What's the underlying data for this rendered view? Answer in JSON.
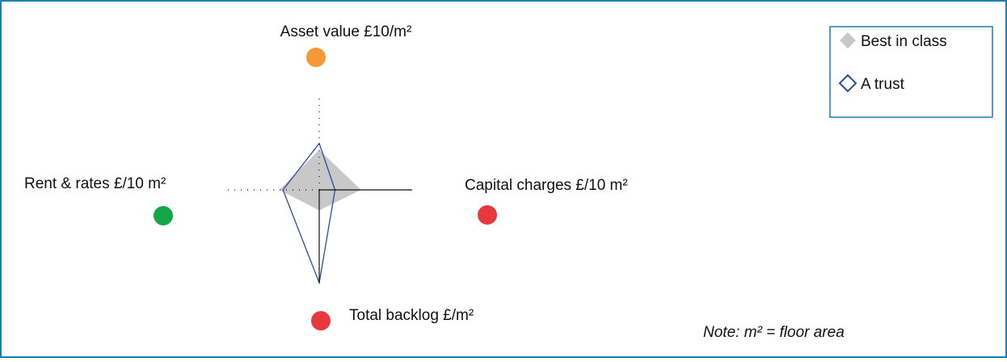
{
  "chart_data": {
    "type": "radar",
    "axes": [
      {
        "label": "Asset value £10/m²",
        "status_color": "#f39a36"
      },
      {
        "label": "Capital charges £/10 m²",
        "status_color": "#e8383d"
      },
      {
        "label": "Total backlog £/m²",
        "status_color": "#e8383d"
      },
      {
        "label": "Rent & rates £/10 m²",
        "status_color": "#16a64a"
      }
    ],
    "rlim": [
      0,
      100
    ],
    "series": [
      {
        "name": "Best in class",
        "color": "#c8c8c8",
        "style": "filled",
        "values": [
          43,
          45,
          22,
          43
        ]
      },
      {
        "name": "A trust",
        "color": "#2a4d9b",
        "style": "outline",
        "values": [
          50,
          17,
          100,
          39
        ]
      }
    ],
    "note": "Note: m² = floor area",
    "legend": "top-right"
  }
}
